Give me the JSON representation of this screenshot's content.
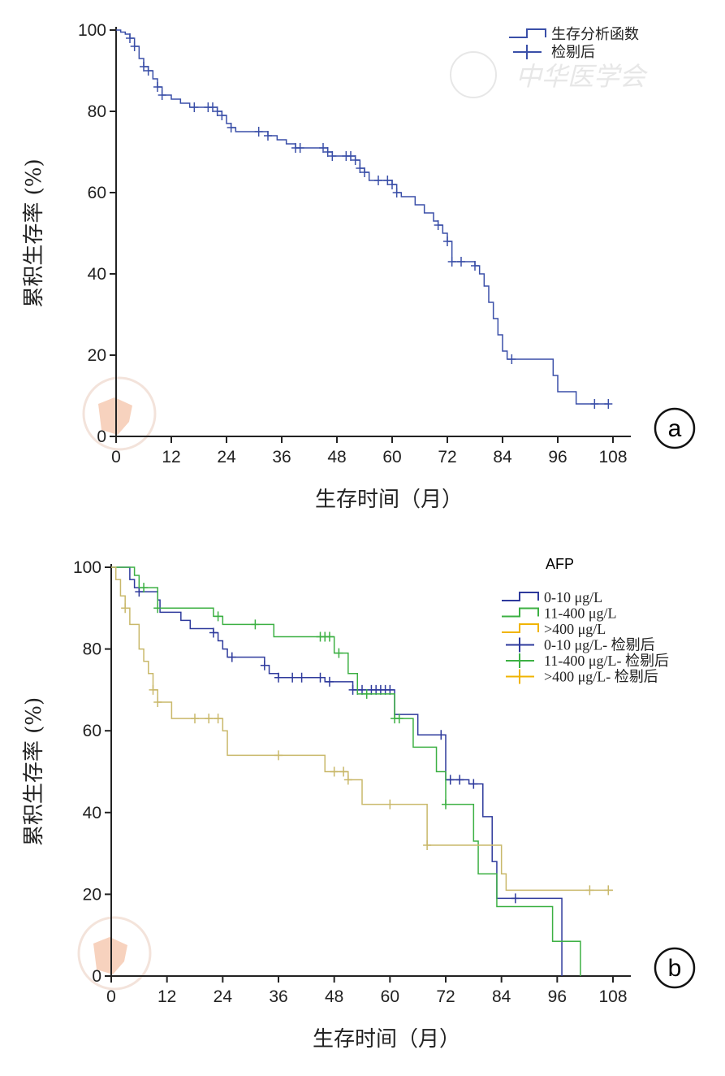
{
  "watermark": "中华医学会",
  "chart_data": [
    {
      "type": "line",
      "subtype": "kaplan-meier",
      "panel_label": "a",
      "xlabel": "生存时间（月）",
      "ylabel": "累积生存率 (%)",
      "xlim": [
        0,
        108
      ],
      "ylim": [
        0,
        100
      ],
      "xticks": [
        0,
        12,
        24,
        36,
        48,
        60,
        72,
        84,
        96,
        108
      ],
      "yticks": [
        0,
        20,
        40,
        60,
        80,
        100
      ],
      "legend": [
        "生存分析函数",
        "检剔后"
      ],
      "legend_placement": "top-right",
      "series": [
        {
          "color": "#3a4fa8",
          "steps": [
            [
              0,
              100
            ],
            [
              1,
              99.5
            ],
            [
              2,
              99
            ],
            [
              3,
              98
            ],
            [
              4,
              96
            ],
            [
              5,
              93
            ],
            [
              6,
              91
            ],
            [
              7,
              90
            ],
            [
              8,
              88
            ],
            [
              9,
              86
            ],
            [
              10,
              84
            ],
            [
              12,
              83
            ],
            [
              14,
              82
            ],
            [
              16,
              81
            ],
            [
              22,
              80
            ],
            [
              23,
              79
            ],
            [
              24,
              77
            ],
            [
              25,
              76
            ],
            [
              26,
              75
            ],
            [
              33,
              74
            ],
            [
              35,
              73
            ],
            [
              37,
              72
            ],
            [
              39,
              71
            ],
            [
              46,
              70
            ],
            [
              47,
              69
            ],
            [
              52,
              68
            ],
            [
              53,
              66
            ],
            [
              54,
              65
            ],
            [
              55,
              63
            ],
            [
              60,
              62
            ],
            [
              61,
              60
            ],
            [
              62,
              59
            ],
            [
              65,
              57
            ],
            [
              67,
              55
            ],
            [
              69,
              53
            ],
            [
              70,
              52
            ],
            [
              71,
              50
            ],
            [
              72,
              48
            ],
            [
              73,
              43
            ],
            [
              78,
              42
            ],
            [
              79,
              40
            ],
            [
              80,
              37
            ],
            [
              81,
              33
            ],
            [
              82,
              29
            ],
            [
              83,
              25
            ],
            [
              84,
              21
            ],
            [
              85,
              19
            ],
            [
              95,
              15
            ],
            [
              96,
              11
            ],
            [
              100,
              8
            ]
          ],
          "end": 107,
          "censored": [
            3,
            4,
            6,
            7,
            9,
            10,
            17,
            20,
            21,
            22,
            23,
            25,
            31,
            33,
            39,
            40,
            45,
            46,
            47,
            50,
            51,
            52,
            53,
            54,
            57,
            59,
            60,
            61,
            70,
            72,
            73,
            75,
            78,
            86,
            104,
            107
          ]
        }
      ]
    },
    {
      "type": "line",
      "subtype": "kaplan-meier",
      "panel_label": "b",
      "xlabel": "生存时间（月）",
      "ylabel": "累积生存率 (%)",
      "xlim": [
        0,
        108
      ],
      "ylim": [
        0,
        100
      ],
      "xticks": [
        0,
        12,
        24,
        36,
        48,
        60,
        72,
        84,
        96,
        108
      ],
      "yticks": [
        0,
        20,
        40,
        60,
        80,
        100
      ],
      "legend_title": "AFP",
      "legend_placement": "top-right",
      "legend": [
        "0-10 μg/L",
        "11-400 μg/L",
        ">400 μg/L",
        "0-10 μg/L- 检剔后",
        "11-400 μg/L- 检剔后",
        ">400 μg/L- 检剔后"
      ],
      "series": [
        {
          "name": "0-10 μg/L",
          "color": "#2e3a9c",
          "steps": [
            [
              0,
              100
            ],
            [
              4,
              97
            ],
            [
              5,
              95
            ],
            [
              6,
              94
            ],
            [
              10,
              92
            ],
            [
              10.5,
              89
            ],
            [
              15,
              87
            ],
            [
              17,
              85
            ],
            [
              22,
              84
            ],
            [
              23,
              82
            ],
            [
              24,
              80
            ],
            [
              25,
              78
            ],
            [
              33,
              76
            ],
            [
              34,
              74
            ],
            [
              36,
              73
            ],
            [
              46,
              72
            ],
            [
              52,
              70
            ],
            [
              61,
              64
            ],
            [
              66,
              59
            ],
            [
              72,
              48
            ],
            [
              77,
              47
            ],
            [
              80,
              39
            ],
            [
              82,
              28
            ],
            [
              83,
              19
            ],
            [
              97,
              0
            ]
          ],
          "end": 97,
          "censored": [
            6,
            22,
            26,
            33,
            36,
            39,
            41,
            45,
            47,
            52,
            53,
            54,
            56,
            57,
            58,
            59,
            60,
            71,
            73,
            75,
            78,
            87
          ]
        },
        {
          "name": "11-400 μg/L",
          "color": "#3cb043",
          "steps": [
            [
              0,
              100
            ],
            [
              5,
              98
            ],
            [
              6,
              95
            ],
            [
              10,
              90
            ],
            [
              22,
              88
            ],
            [
              24,
              86
            ],
            [
              35,
              83
            ],
            [
              48,
              79
            ],
            [
              51,
              74
            ],
            [
              53,
              69
            ],
            [
              61,
              63
            ],
            [
              65,
              56
            ],
            [
              70,
              50
            ],
            [
              72,
              42
            ],
            [
              78,
              33
            ],
            [
              79,
              25
            ],
            [
              83,
              17
            ],
            [
              95,
              8.5
            ],
            [
              101,
              0
            ]
          ],
          "end": 101,
          "censored": [
            7,
            10,
            23,
            31,
            45,
            46,
            47,
            49,
            55,
            61,
            62,
            72
          ]
        },
        {
          "name": ">400 μg/L",
          "color": "#c9b86a",
          "steps": [
            [
              0,
              100
            ],
            [
              1,
              97
            ],
            [
              2,
              93
            ],
            [
              3,
              90
            ],
            [
              4,
              86
            ],
            [
              6,
              80
            ],
            [
              7,
              77
            ],
            [
              8,
              74
            ],
            [
              9,
              70
            ],
            [
              10,
              67
            ],
            [
              13,
              63
            ],
            [
              24,
              60
            ],
            [
              25,
              54
            ],
            [
              46,
              50
            ],
            [
              51,
              48
            ],
            [
              54,
              42
            ],
            [
              68,
              32
            ],
            [
              84,
              25
            ],
            [
              85,
              21
            ]
          ],
          "end": 108,
          "censored": [
            3,
            9,
            10,
            18,
            21,
            23,
            36,
            48,
            50,
            51,
            60,
            68,
            103,
            107
          ]
        }
      ]
    }
  ]
}
